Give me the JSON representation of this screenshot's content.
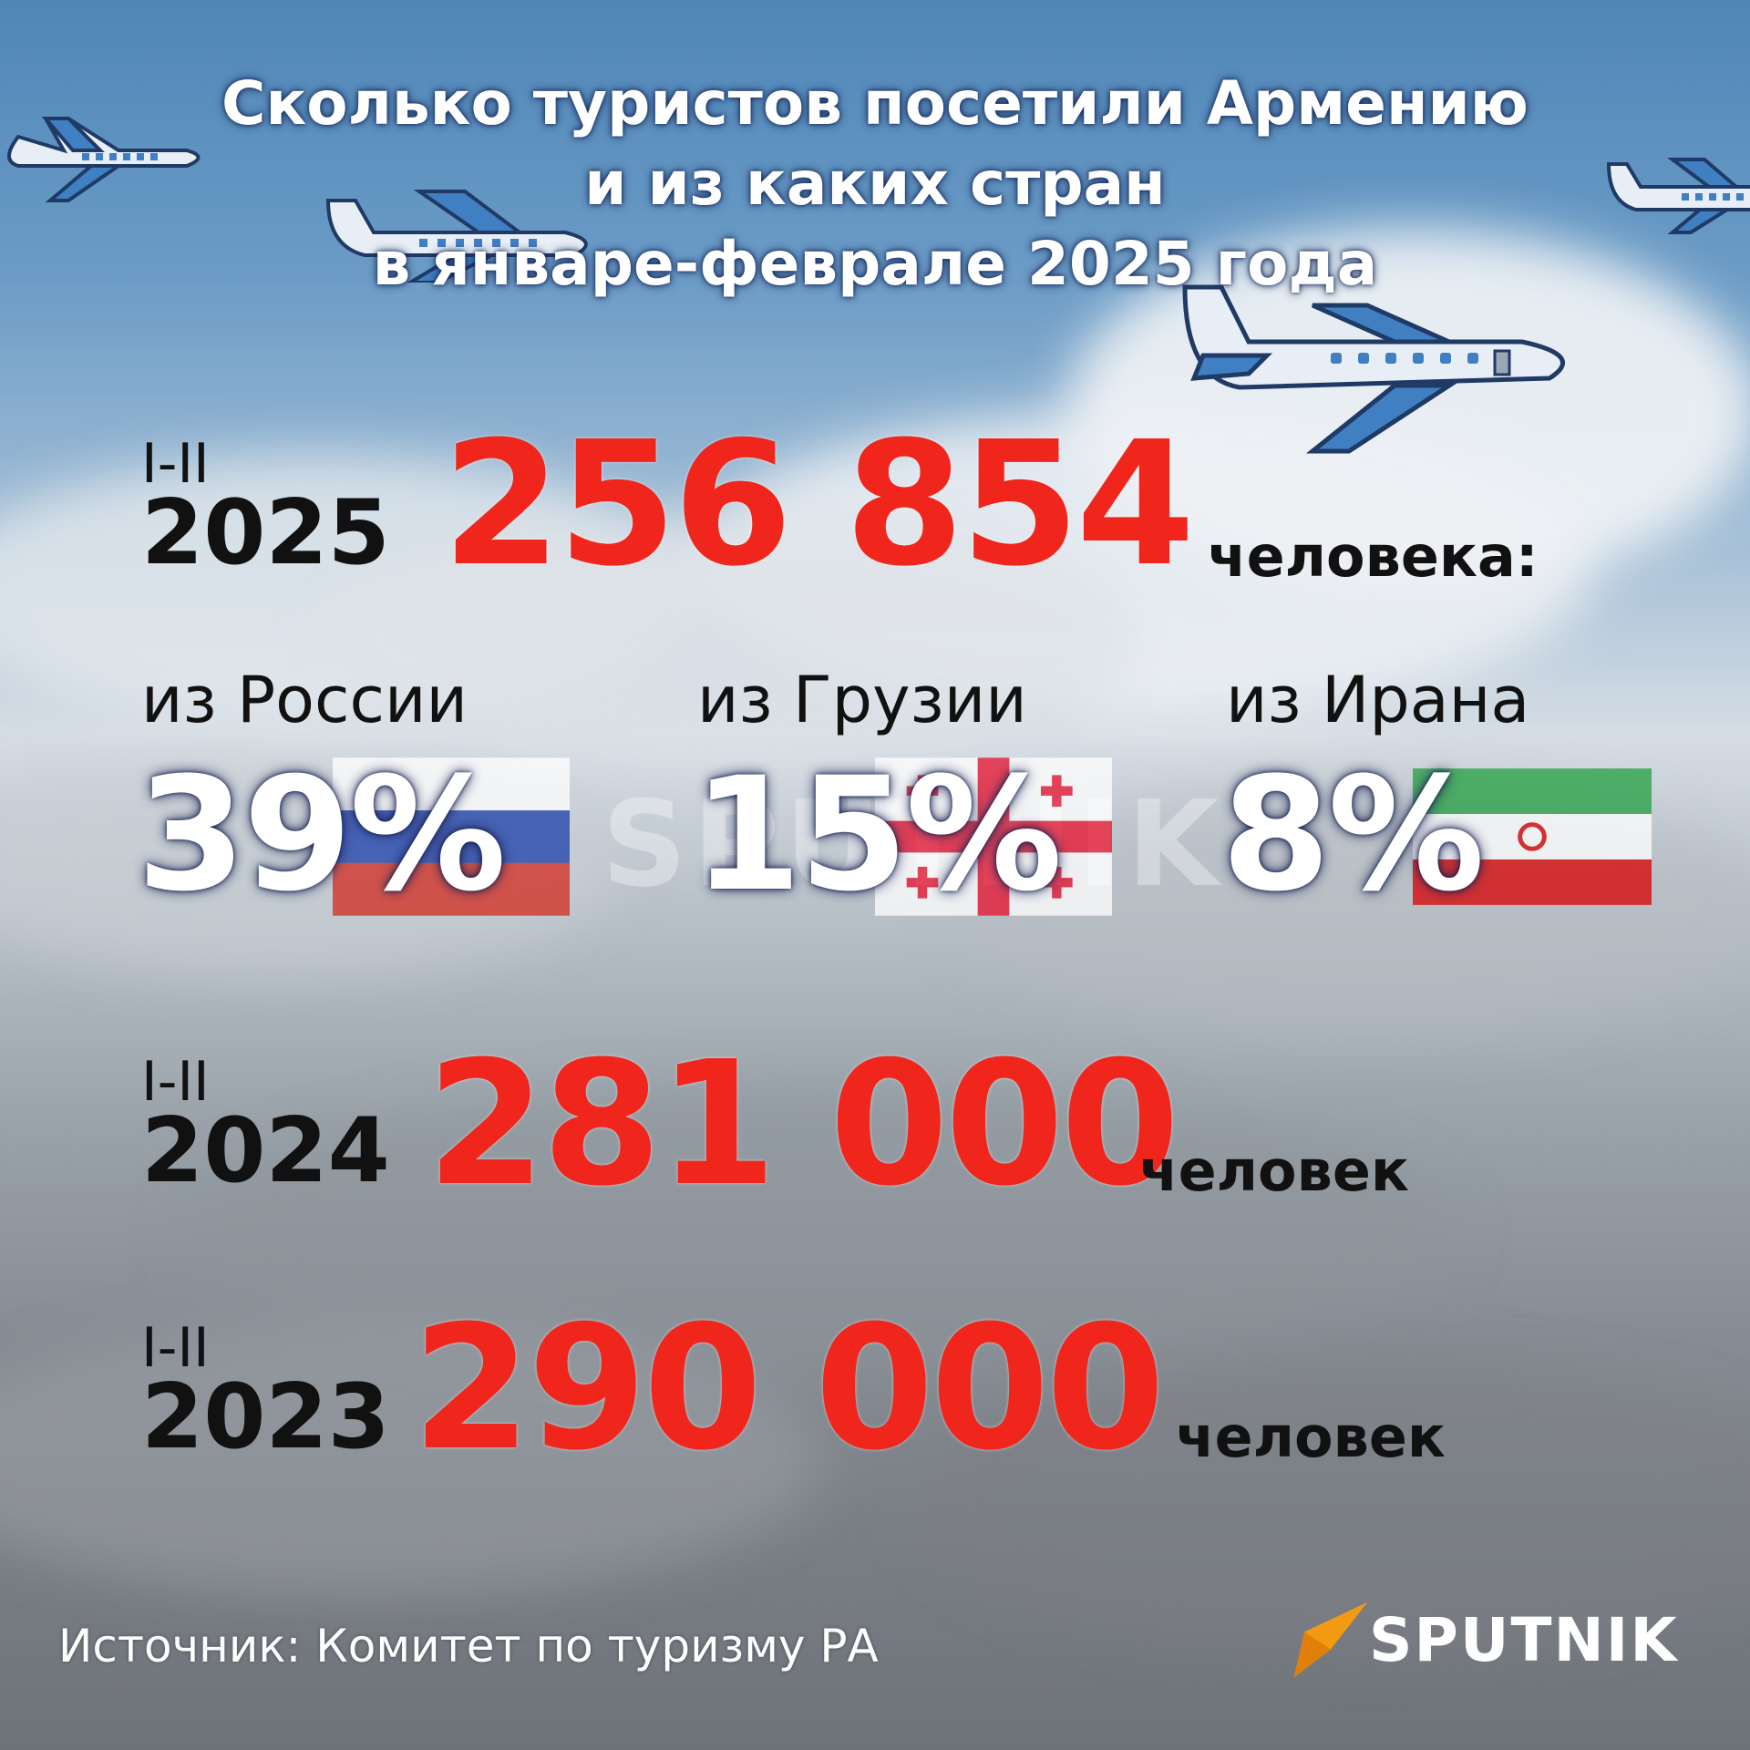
{
  "title": {
    "line1": "Сколько туристов посетили Армению",
    "line2": "и из каких стран",
    "line3": "в январе-феврале 2025 года"
  },
  "year2025": {
    "period": "I-II",
    "year": "2025",
    "value": "256 854",
    "unit": "человека:"
  },
  "countries": [
    {
      "label": "из России",
      "percent": "39%",
      "flag": "russia-flag-icon"
    },
    {
      "label": "из Грузии",
      "percent": "15%",
      "flag": "georgia-flag-icon"
    },
    {
      "label": "из Ирана",
      "percent": "8%",
      "flag": "iran-flag-icon"
    }
  ],
  "year2024": {
    "period": "I-II",
    "year": "2024",
    "value": "281 000",
    "unit": "человек"
  },
  "year2023": {
    "period": "I-II",
    "year": "2023",
    "value": "290 000",
    "unit": "человек"
  },
  "source": "Источник: Комитет по туризму РА",
  "brand": {
    "name": "SPUTNIK",
    "logo_icon": "sputnik-logo-icon",
    "accent": "#f29a12"
  },
  "colors": {
    "highlight": "#f0261c",
    "plane": "#3f7fc2"
  }
}
